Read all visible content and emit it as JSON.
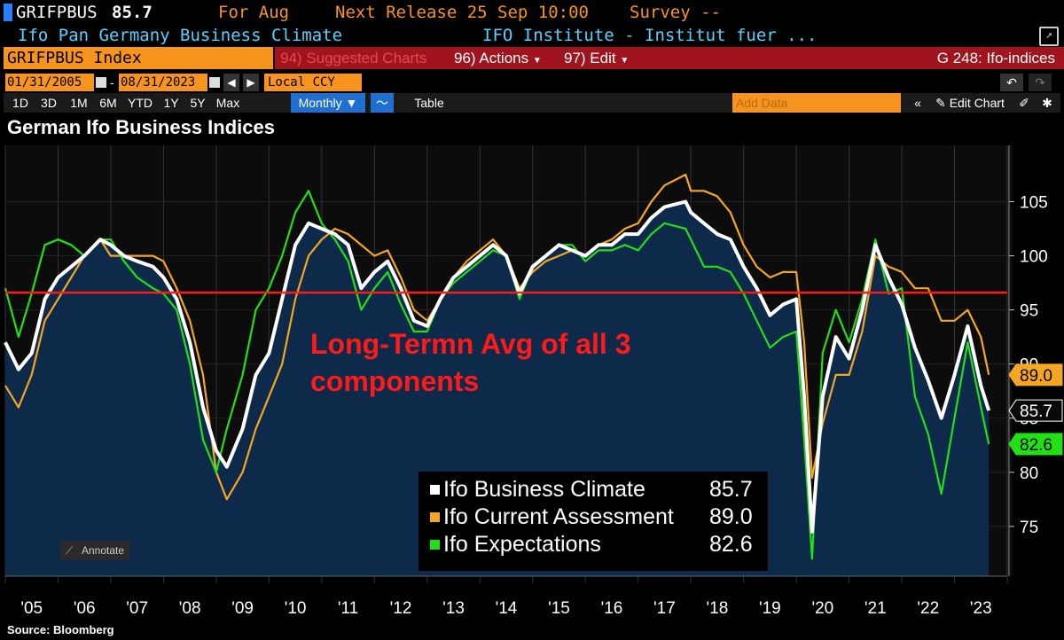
{
  "header": {
    "ticker": "GRIFPBUS",
    "price": "85.7",
    "for_label": "For Aug",
    "next_release": "Next Release 25 Sep 10:00",
    "survey": "Survey --",
    "description": "Ifo Pan Germany Business Climate",
    "source_org": "IFO Institute - Institut fuer ...",
    "security": "GRIFPBUS Index",
    "suggested": "94) Suggested Charts",
    "actions": "96) Actions",
    "edit": "97) Edit",
    "graph_id": "G 248: Ifo-indices",
    "start_date": "01/31/2005",
    "end_date": "08/31/2023",
    "currency": "Local CCY",
    "periods": [
      "1D",
      "3D",
      "1M",
      "6M",
      "YTD",
      "1Y",
      "5Y",
      "Max"
    ],
    "frequency": "Monthly",
    "table_label": "Table",
    "add_data": "Add Data",
    "edit_chart": "Edit Chart"
  },
  "colors": {
    "climate": "#ffffff",
    "current": "#f5a623",
    "expectations": "#22e016",
    "avg_line": "#ff1a1a",
    "fill": "#0d2a4a",
    "header_red": "#a0141e",
    "orange": "#f7941d"
  },
  "chart_data": {
    "type": "line",
    "title": "German Ifo Business Indices",
    "annotation": "Long-Termn Avg of all 3 components",
    "annotate_button": "Annotate",
    "source": "Source: Bloomberg",
    "x_tick_labels": [
      "'05",
      "'06",
      "'07",
      "'08",
      "'09",
      "'10",
      "'11",
      "'12",
      "'13",
      "'14",
      "'15",
      "'16",
      "'17",
      "'18",
      "'19",
      "'20",
      "'21",
      "'22",
      "'23"
    ],
    "y_ticks": [
      75,
      80,
      85,
      90,
      95,
      100,
      105
    ],
    "ylim": [
      70.4,
      110.2
    ],
    "xlim": [
      2005.0,
      2024.0
    ],
    "reference_line": 96.6,
    "series": [
      {
        "name": "Ifo Business Climate",
        "key": "climate",
        "last": "85.7",
        "points": [
          [
            2005.0,
            92
          ],
          [
            2005.25,
            89.5
          ],
          [
            2005.5,
            91
          ],
          [
            2005.75,
            96
          ],
          [
            2006.0,
            98
          ],
          [
            2006.25,
            99
          ],
          [
            2006.5,
            100
          ],
          [
            2006.8,
            101.5
          ],
          [
            2007.0,
            101
          ],
          [
            2007.25,
            100
          ],
          [
            2007.5,
            99.5
          ],
          [
            2007.8,
            99
          ],
          [
            2008.0,
            98
          ],
          [
            2008.25,
            96
          ],
          [
            2008.5,
            92
          ],
          [
            2008.75,
            86
          ],
          [
            2009.0,
            82
          ],
          [
            2009.2,
            80.5
          ],
          [
            2009.5,
            84
          ],
          [
            2009.75,
            89
          ],
          [
            2010.0,
            91
          ],
          [
            2010.25,
            96
          ],
          [
            2010.5,
            101
          ],
          [
            2010.75,
            103
          ],
          [
            2011.0,
            102.5
          ],
          [
            2011.25,
            102
          ],
          [
            2011.5,
            101
          ],
          [
            2011.75,
            97
          ],
          [
            2012.0,
            98.5
          ],
          [
            2012.25,
            99.5
          ],
          [
            2012.5,
            97
          ],
          [
            2012.75,
            94
          ],
          [
            2013.0,
            93.5
          ],
          [
            2013.25,
            96
          ],
          [
            2013.5,
            98
          ],
          [
            2013.75,
            99
          ],
          [
            2014.0,
            100
          ],
          [
            2014.25,
            101
          ],
          [
            2014.5,
            100
          ],
          [
            2014.75,
            96.5
          ],
          [
            2015.0,
            99
          ],
          [
            2015.25,
            100
          ],
          [
            2015.5,
            101
          ],
          [
            2015.75,
            100.5
          ],
          [
            2016.0,
            100
          ],
          [
            2016.25,
            101
          ],
          [
            2016.5,
            101
          ],
          [
            2016.75,
            102
          ],
          [
            2017.0,
            102
          ],
          [
            2017.25,
            103.5
          ],
          [
            2017.5,
            104.5
          ],
          [
            2017.9,
            105
          ],
          [
            2018.0,
            104
          ],
          [
            2018.25,
            103
          ],
          [
            2018.5,
            102
          ],
          [
            2018.75,
            101.5
          ],
          [
            2019.0,
            99
          ],
          [
            2019.25,
            97
          ],
          [
            2019.5,
            94.5
          ],
          [
            2019.75,
            95.5
          ],
          [
            2020.0,
            96
          ],
          [
            2020.15,
            87
          ],
          [
            2020.3,
            74.5
          ],
          [
            2020.5,
            87
          ],
          [
            2020.75,
            92.5
          ],
          [
            2021.0,
            90.5
          ],
          [
            2021.25,
            95
          ],
          [
            2021.5,
            101
          ],
          [
            2021.75,
            98
          ],
          [
            2022.0,
            95.5
          ],
          [
            2022.25,
            91.5
          ],
          [
            2022.5,
            88.5
          ],
          [
            2022.75,
            85
          ],
          [
            2023.0,
            89
          ],
          [
            2023.25,
            93.5
          ],
          [
            2023.5,
            88
          ],
          [
            2023.65,
            85.7
          ]
        ]
      },
      {
        "name": "Ifo Current Assessment",
        "key": "current",
        "last": "89.0",
        "points": [
          [
            2005.0,
            88
          ],
          [
            2005.25,
            86
          ],
          [
            2005.5,
            89
          ],
          [
            2005.75,
            94
          ],
          [
            2006.0,
            96
          ],
          [
            2006.25,
            98
          ],
          [
            2006.5,
            100
          ],
          [
            2006.8,
            101.5
          ],
          [
            2007.0,
            100
          ],
          [
            2007.25,
            100
          ],
          [
            2007.5,
            100
          ],
          [
            2007.8,
            100
          ],
          [
            2008.0,
            99.5
          ],
          [
            2008.25,
            97
          ],
          [
            2008.5,
            94
          ],
          [
            2008.75,
            89
          ],
          [
            2009.0,
            80
          ],
          [
            2009.2,
            77.5
          ],
          [
            2009.5,
            80
          ],
          [
            2009.75,
            84
          ],
          [
            2010.0,
            87
          ],
          [
            2010.25,
            90
          ],
          [
            2010.5,
            96
          ],
          [
            2010.75,
            100
          ],
          [
            2011.0,
            101.5
          ],
          [
            2011.25,
            102.5
          ],
          [
            2011.5,
            102
          ],
          [
            2011.75,
            101
          ],
          [
            2012.0,
            100
          ],
          [
            2012.25,
            100.5
          ],
          [
            2012.5,
            98
          ],
          [
            2012.75,
            95
          ],
          [
            2013.0,
            94
          ],
          [
            2013.25,
            96
          ],
          [
            2013.5,
            98
          ],
          [
            2013.75,
            99.5
          ],
          [
            2014.0,
            100.5
          ],
          [
            2014.25,
            101.5
          ],
          [
            2014.5,
            100
          ],
          [
            2014.75,
            97
          ],
          [
            2015.0,
            98.5
          ],
          [
            2015.25,
            99.5
          ],
          [
            2015.5,
            100
          ],
          [
            2015.75,
            100.5
          ],
          [
            2016.0,
            100
          ],
          [
            2016.25,
            101
          ],
          [
            2016.5,
            101.5
          ],
          [
            2016.75,
            102.5
          ],
          [
            2017.0,
            103
          ],
          [
            2017.25,
            105
          ],
          [
            2017.5,
            106.5
          ],
          [
            2017.9,
            107.5
          ],
          [
            2018.0,
            106
          ],
          [
            2018.25,
            106
          ],
          [
            2018.5,
            105.5
          ],
          [
            2018.75,
            104
          ],
          [
            2019.0,
            101
          ],
          [
            2019.25,
            99
          ],
          [
            2019.5,
            98
          ],
          [
            2019.75,
            98.5
          ],
          [
            2020.0,
            98.5
          ],
          [
            2020.15,
            92
          ],
          [
            2020.3,
            79.5
          ],
          [
            2020.5,
            84.5
          ],
          [
            2020.75,
            89
          ],
          [
            2021.0,
            89
          ],
          [
            2021.25,
            93
          ],
          [
            2021.5,
            100
          ],
          [
            2021.75,
            99
          ],
          [
            2022.0,
            98.5
          ],
          [
            2022.25,
            97
          ],
          [
            2022.5,
            97
          ],
          [
            2022.75,
            94
          ],
          [
            2023.0,
            94
          ],
          [
            2023.25,
            95
          ],
          [
            2023.5,
            92.5
          ],
          [
            2023.65,
            89.0
          ]
        ]
      },
      {
        "name": "Ifo Expectations",
        "key": "expectations",
        "last": "82.6",
        "points": [
          [
            2005.0,
            97
          ],
          [
            2005.25,
            92.5
          ],
          [
            2005.5,
            96.5
          ],
          [
            2005.75,
            101
          ],
          [
            2006.0,
            101.5
          ],
          [
            2006.25,
            101
          ],
          [
            2006.5,
            100
          ],
          [
            2006.8,
            101.5
          ],
          [
            2007.0,
            101.5
          ],
          [
            2007.25,
            99.5
          ],
          [
            2007.5,
            98
          ],
          [
            2007.8,
            97
          ],
          [
            2008.0,
            96.5
          ],
          [
            2008.25,
            95
          ],
          [
            2008.5,
            90
          ],
          [
            2008.75,
            83
          ],
          [
            2009.0,
            80
          ],
          [
            2009.2,
            84
          ],
          [
            2009.5,
            89
          ],
          [
            2009.75,
            95
          ],
          [
            2010.0,
            97
          ],
          [
            2010.25,
            100
          ],
          [
            2010.5,
            104
          ],
          [
            2010.75,
            106
          ],
          [
            2011.0,
            103
          ],
          [
            2011.25,
            101.5
          ],
          [
            2011.5,
            99.5
          ],
          [
            2011.75,
            95
          ],
          [
            2012.0,
            97
          ],
          [
            2012.25,
            98.5
          ],
          [
            2012.5,
            95.5
          ],
          [
            2012.75,
            93
          ],
          [
            2013.0,
            93
          ],
          [
            2013.25,
            96
          ],
          [
            2013.5,
            97.5
          ],
          [
            2013.75,
            98.5
          ],
          [
            2014.0,
            99.5
          ],
          [
            2014.25,
            100.5
          ],
          [
            2014.5,
            100
          ],
          [
            2014.75,
            96
          ],
          [
            2015.0,
            99
          ],
          [
            2015.25,
            100
          ],
          [
            2015.5,
            101
          ],
          [
            2015.75,
            101
          ],
          [
            2016.0,
            99.5
          ],
          [
            2016.25,
            100.5
          ],
          [
            2016.5,
            100.5
          ],
          [
            2016.75,
            101
          ],
          [
            2017.0,
            100.5
          ],
          [
            2017.25,
            102
          ],
          [
            2017.5,
            103
          ],
          [
            2017.9,
            102.5
          ],
          [
            2018.0,
            101.5
          ],
          [
            2018.25,
            99
          ],
          [
            2018.5,
            99
          ],
          [
            2018.75,
            98.5
          ],
          [
            2019.0,
            96.5
          ],
          [
            2019.25,
            94
          ],
          [
            2019.5,
            91.5
          ],
          [
            2019.75,
            92.5
          ],
          [
            2020.0,
            93
          ],
          [
            2020.15,
            83
          ],
          [
            2020.3,
            72
          ],
          [
            2020.5,
            91
          ],
          [
            2020.75,
            95
          ],
          [
            2021.0,
            92
          ],
          [
            2021.25,
            96
          ],
          [
            2021.5,
            101.5
          ],
          [
            2021.75,
            96.5
          ],
          [
            2022.0,
            97
          ],
          [
            2022.25,
            87
          ],
          [
            2022.5,
            83.5
          ],
          [
            2022.75,
            78
          ],
          [
            2023.0,
            85
          ],
          [
            2023.25,
            92
          ],
          [
            2023.5,
            86
          ],
          [
            2023.65,
            82.6
          ]
        ]
      }
    ]
  }
}
